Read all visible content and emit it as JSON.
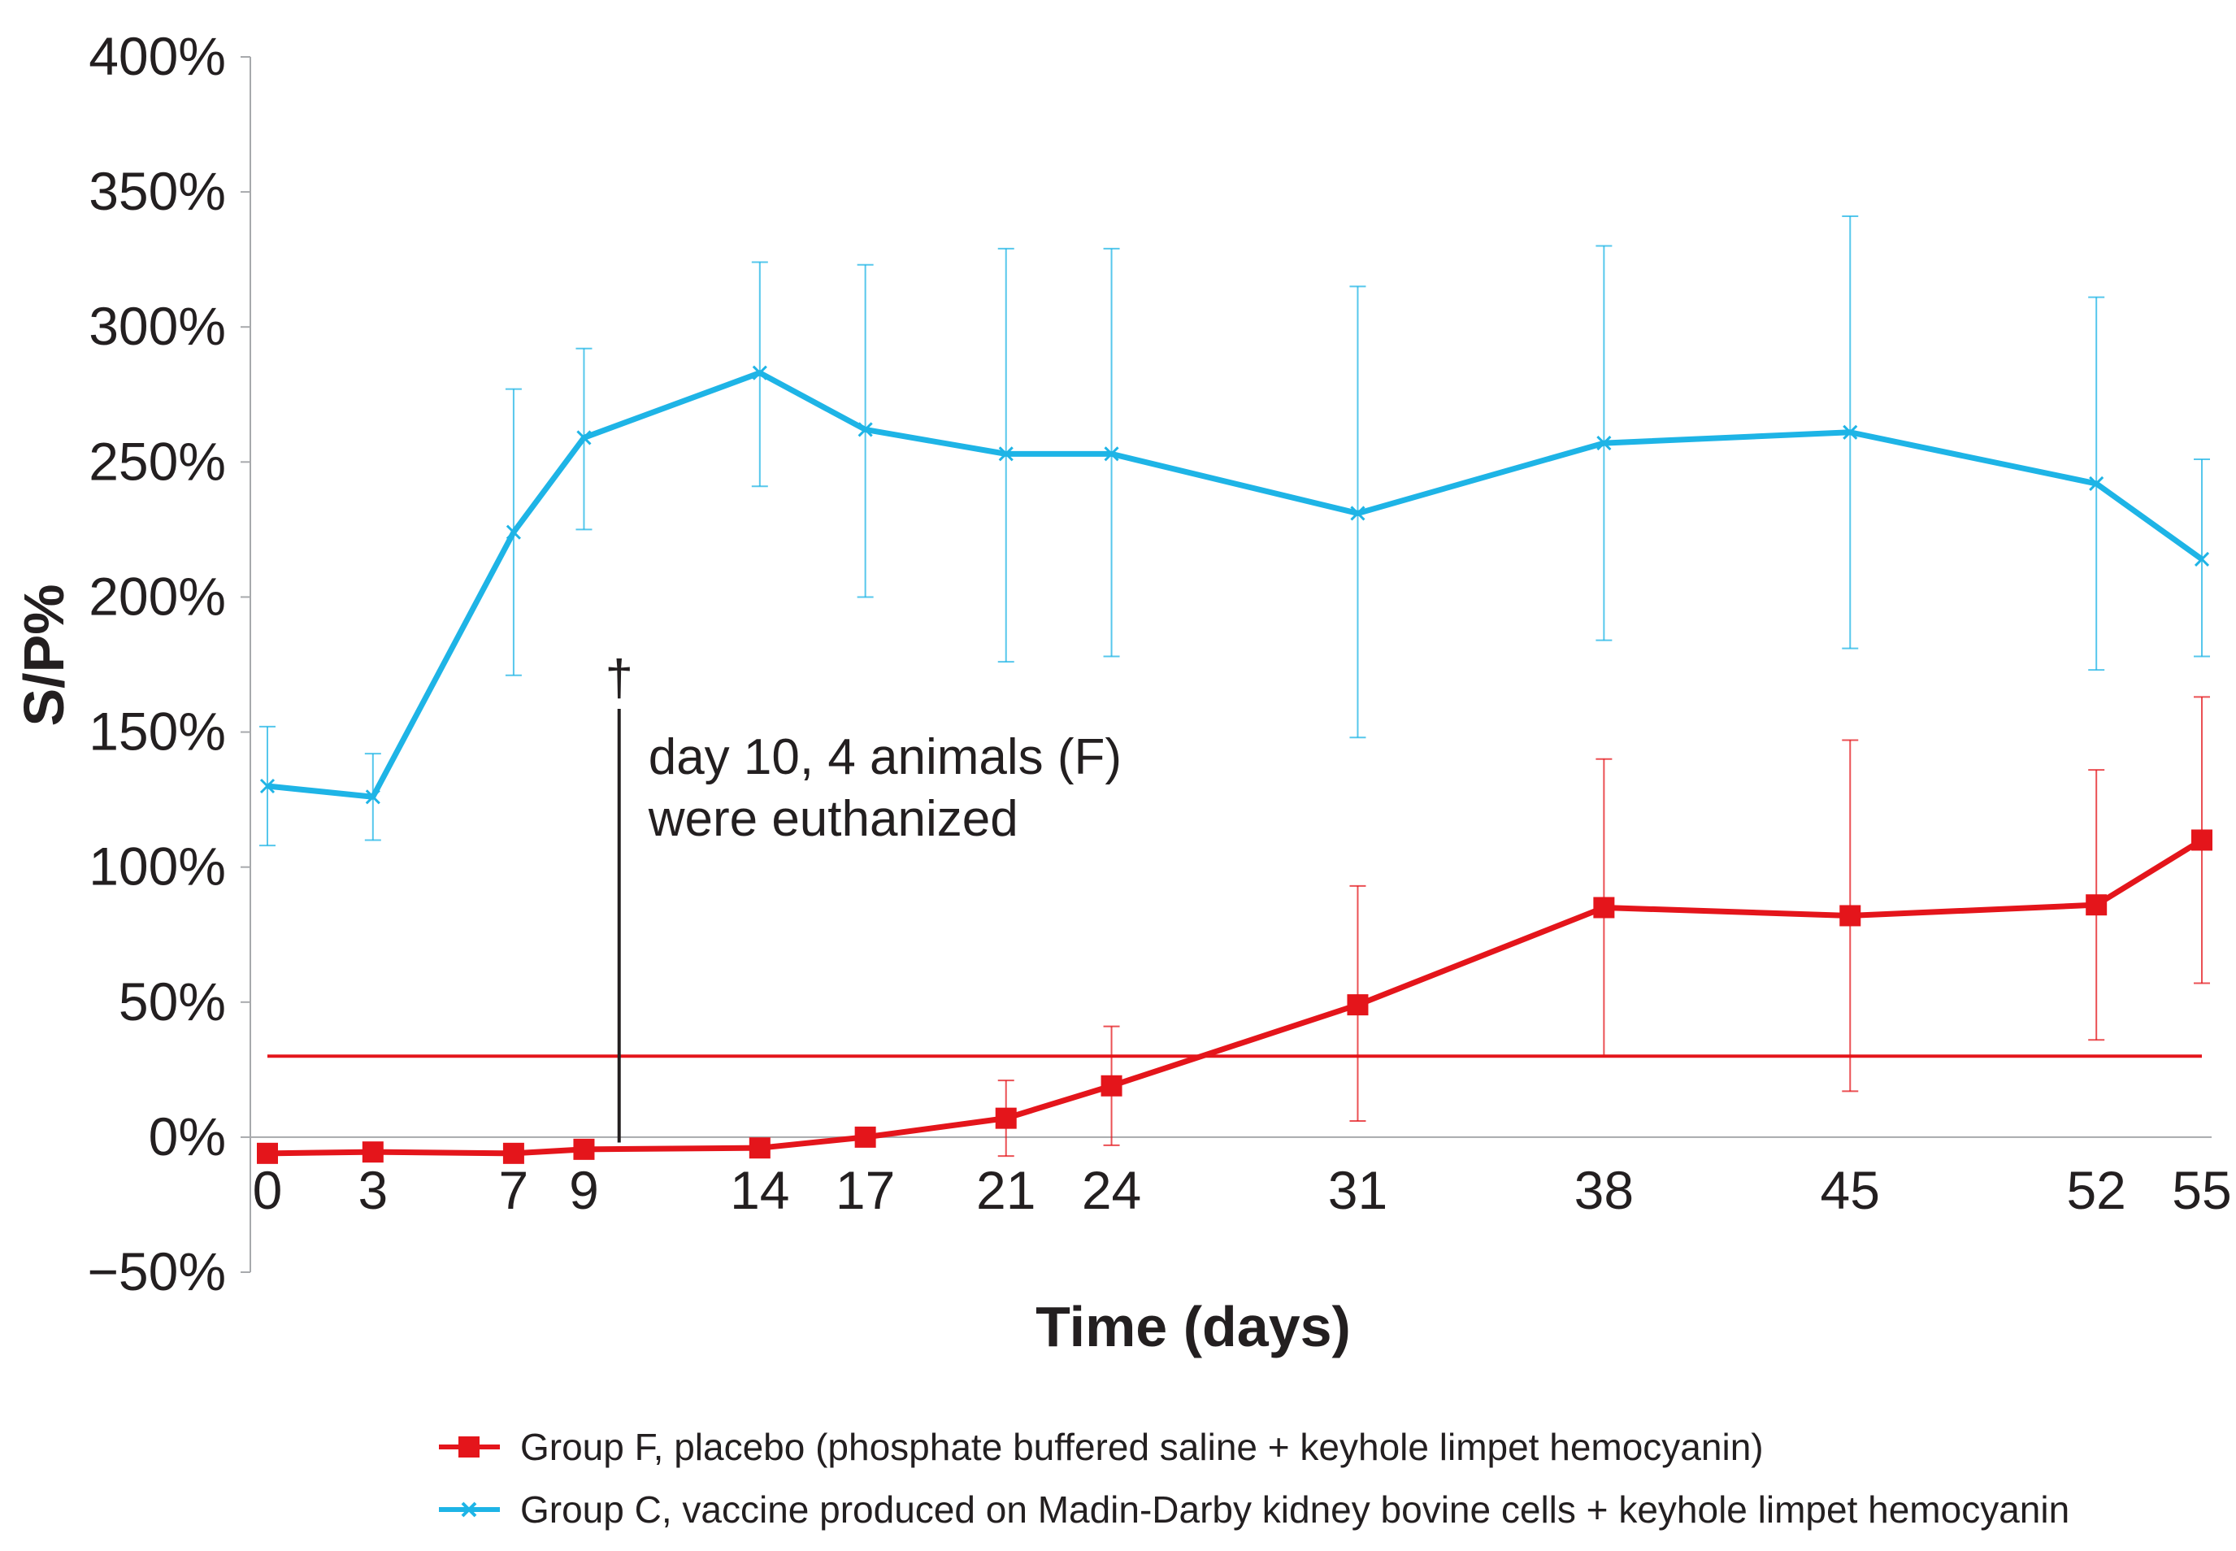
{
  "chart_data": {
    "type": "line",
    "xlabel": "Time (days)",
    "ylabel": "S/P%",
    "x_ticks": [
      0,
      3,
      7,
      9,
      14,
      17,
      21,
      24,
      31,
      38,
      45,
      52,
      55
    ],
    "ylim": [
      -50,
      400
    ],
    "y_ticks": [
      -50,
      0,
      50,
      100,
      150,
      200,
      250,
      300,
      350,
      400
    ],
    "y_tick_labels": [
      "−50%",
      "0%",
      "50%",
      "100%",
      "150%",
      "200%",
      "250%",
      "300%",
      "350%",
      "400%"
    ],
    "grid": false,
    "legend_position": "bottom",
    "series": [
      {
        "name": "Group F, placebo (phosphate buffered saline + keyhole limpet hemocyanin)",
        "color": "#e4151b",
        "marker": "square",
        "x": [
          0,
          3,
          7,
          9,
          14,
          17,
          21,
          24,
          31,
          38,
          45,
          52,
          55
        ],
        "y": [
          -6,
          -5.5,
          -6,
          -4.5,
          -4,
          0,
          7,
          19,
          49,
          85,
          82,
          86,
          110
        ],
        "err_low": [
          null,
          null,
          null,
          null,
          null,
          null,
          -7,
          -3,
          6,
          30,
          17,
          36,
          57
        ],
        "err_high": [
          null,
          null,
          null,
          null,
          null,
          null,
          21,
          41,
          93,
          140,
          147,
          136,
          163
        ]
      },
      {
        "name": "Group C, vaccine produced on Madin-Darby kidney bovine cells + keyhole limpet hemocyanin",
        "color": "#1eb4e6",
        "marker": "x",
        "x": [
          0,
          3,
          7,
          9,
          14,
          17,
          21,
          24,
          31,
          38,
          45,
          52,
          55
        ],
        "y": [
          130,
          126,
          224,
          259,
          283,
          262,
          253,
          253,
          231,
          257,
          261,
          242,
          214
        ],
        "err_low": [
          108,
          110,
          171,
          225,
          241,
          200,
          176,
          178,
          148,
          184,
          181,
          173,
          178
        ],
        "err_high": [
          152,
          142,
          277,
          292,
          324,
          323,
          329,
          329,
          315,
          330,
          341,
          311,
          251
        ]
      }
    ],
    "reference_line": {
      "y": 30,
      "color": "#e4151b"
    },
    "annotation": {
      "x": 10,
      "symbol": "†",
      "lines": [
        "day 10, 4 animals (F)",
        "were euthanized"
      ]
    }
  }
}
